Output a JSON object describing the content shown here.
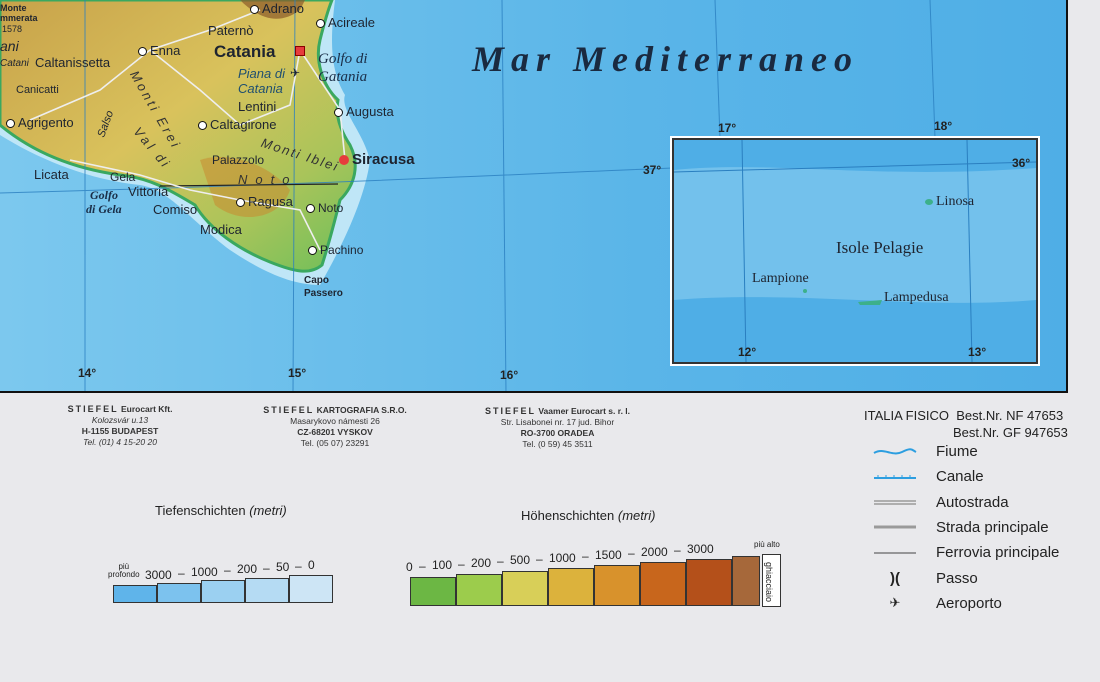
{
  "map": {
    "sea_name": "Mar Mediterraneo",
    "places": {
      "monte": "Monte",
      "cammarata": "mmerata",
      "cammarata_elev": "1578",
      "ani": "ani",
      "catani": "Catani",
      "adrano": "Adrano",
      "acireale": "Acireale",
      "paterno": "Paternò",
      "catania": "Catania",
      "enna": "Enna",
      "caltanissetta": "Caltanissetta",
      "canicatti": "Canicatti",
      "lentini": "Lentini",
      "augusta": "Augusta",
      "agrigento": "Agrigento",
      "caltagirone": "Caltagirone",
      "palazzolo": "Palazzolo",
      "siracusa": "Siracusa",
      "licata": "Licata",
      "gela": "Gela",
      "vittoria": "Vittoria",
      "comiso": "Comiso",
      "ragusa": "Ragusa",
      "noto": "Noto",
      "modica": "Modica",
      "pachino": "Pachino",
      "capo": "Capo",
      "passero": "Passero"
    },
    "features": {
      "golfo_catania_1": "Golfo di",
      "golfo_catania_2": "Gatania",
      "piana_1": "Piana di",
      "piana_2": "Catania",
      "golfo_gela_1": "Golfo",
      "golfo_gela_2": "di Gela",
      "monti_erei": "Monti Erei",
      "salso": "Salso",
      "val_di_noto": "Val di",
      "noto_word": "Noto",
      "monti_iblei": "Monti Iblei"
    },
    "degrees": {
      "d17": "17°",
      "d18": "18°",
      "d37": "37°",
      "d36": "36°",
      "d14": "14°",
      "d15": "15°",
      "d16": "16°",
      "d12": "12°",
      "d13": "13°"
    },
    "inset": {
      "linosa": "Linosa",
      "group": "Isole Pelagie",
      "lampione": "Lampione",
      "lampedusa": "Lampedusa"
    }
  },
  "publishers": [
    {
      "brand": "STIEFEL",
      "name": "Eurocart Kft.",
      "line1": "Kolozsvár u.13",
      "line2": "H-1155 BUDAPEST",
      "line3": "Tel. (01) 4 15-20 20"
    },
    {
      "brand": "STIEFEL",
      "name": "KARTOGRAFIA S.R.O.",
      "line1": "Masarykovo námesti 26",
      "line2": "CZ-68201 VYSKOV",
      "line3": "Tel. (05 07) 23291"
    },
    {
      "brand": "STIEFEL",
      "name": "Vaamer Eurocart s. r. l.",
      "line1": "Str. Lisabonei nr. 17 jud. Bihor",
      "line2": "RO-3700 ORADEA",
      "line3": "Tel. (0 59) 45 3511"
    }
  ],
  "depth_scale": {
    "title": "Tiefenschichten",
    "unit": "(metri)",
    "deepest_1": "più",
    "deepest_2": "profondo",
    "ticks": [
      "3000",
      "–",
      "1000",
      "–",
      "200",
      "–",
      "50",
      "–",
      "0"
    ],
    "colors": [
      "#5fb4ea",
      "#7cc2ee",
      "#9bd0f1",
      "#b5dbf3",
      "#cde5f5"
    ]
  },
  "height_scale": {
    "title": "Höhenschichten",
    "unit": "(metri)",
    "ticks": [
      "0",
      "–",
      "100",
      "–",
      "200",
      "–",
      "500",
      "–",
      "1000",
      "–",
      "1500",
      "–",
      "2000",
      "–",
      "3000"
    ],
    "highest": "più alto",
    "glacier": "ghiacciaio",
    "colors": [
      "#6cb744",
      "#9ccc4c",
      "#d8cf58",
      "#dcb23c",
      "#d8922c",
      "#c8661c",
      "#b4501a",
      "#a6683a"
    ]
  },
  "legend": {
    "title": "ITALIA FISICO",
    "order1": "Best.Nr. NF 47653",
    "order2": "Best.Nr. GF 947653",
    "items": [
      {
        "label": "Fiume",
        "icon": "river-icon"
      },
      {
        "label": "Canale",
        "icon": "canal-icon"
      },
      {
        "label": "Autostrada",
        "icon": "motorway-icon"
      },
      {
        "label": "Strada principale",
        "icon": "main-road-icon"
      },
      {
        "label": "Ferrovia principale",
        "icon": "railway-icon"
      },
      {
        "label": "Passo",
        "icon": "pass-icon"
      },
      {
        "label": "Aeroporto",
        "icon": "airport-icon"
      }
    ],
    "colors": {
      "river": "#2c9ee0",
      "road": "#9a9a9a",
      "rail": "#444444"
    }
  }
}
